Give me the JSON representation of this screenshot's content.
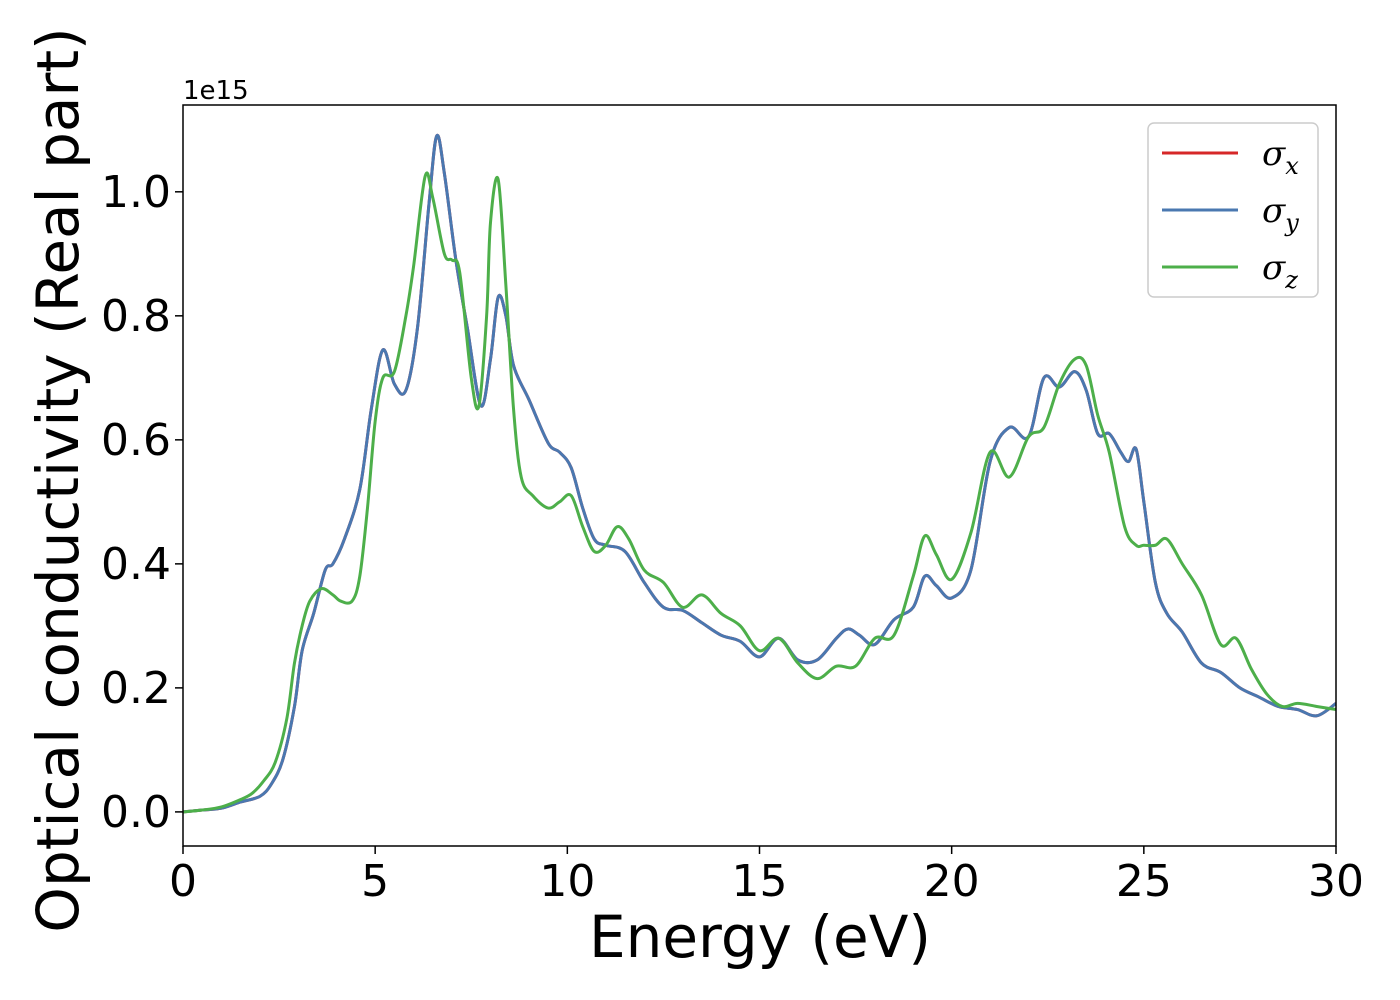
{
  "chart_data": {
    "type": "line",
    "xlabel": "Energy (eV)",
    "ylabel": "Optical conductivity (Real part)",
    "offset_text": "1e15",
    "xlim": [
      0,
      30
    ],
    "ylim": [
      -0.055,
      1.14
    ],
    "x_ticks": [
      0,
      5,
      10,
      15,
      20,
      25,
      30
    ],
    "x_tick_labels": [
      "0",
      "5",
      "10",
      "15",
      "20",
      "25",
      "30"
    ],
    "y_ticks": [
      0.0,
      0.2,
      0.4,
      0.6,
      0.8,
      1.0
    ],
    "y_tick_labels": [
      "0.0",
      "0.2",
      "0.4",
      "0.6",
      "0.8",
      "1.0"
    ],
    "grid": false,
    "legend_position": "top-right",
    "series": [
      {
        "name": "σx",
        "legend_symbol": "σ",
        "legend_sub": "x",
        "color": "#d62728",
        "x": [
          0,
          0.5,
          1,
          1.5,
          2,
          2.3,
          2.6,
          2.9,
          3.1,
          3.4,
          3.7,
          3.9,
          4.2,
          4.6,
          4.9,
          5.2,
          5.5,
          5.8,
          6.1,
          6.4,
          6.6,
          6.8,
          7.1,
          7.4,
          7.75,
          8.0,
          8.2,
          8.4,
          8.6,
          9.0,
          9.5,
          9.8,
          10.1,
          10.4,
          10.7,
          11.0,
          11.5,
          12.0,
          12.5,
          13.0,
          13.5,
          14.0,
          14.5,
          15.0,
          15.5,
          16.0,
          16.5,
          17.0,
          17.3,
          17.6,
          18.0,
          18.5,
          19.0,
          19.3,
          19.6,
          20.0,
          20.5,
          21.0,
          21.5,
          22.0,
          22.4,
          22.8,
          23.2,
          23.5,
          23.8,
          24.1,
          24.4,
          24.6,
          24.8,
          25.0,
          25.3,
          25.6,
          26.0,
          26.5,
          27.0,
          27.5,
          28.0,
          28.5,
          29.0,
          29.5,
          30.0
        ],
        "values": [
          0.0,
          0.003,
          0.006,
          0.016,
          0.025,
          0.045,
          0.085,
          0.17,
          0.26,
          0.32,
          0.39,
          0.4,
          0.44,
          0.52,
          0.65,
          0.745,
          0.69,
          0.68,
          0.78,
          0.98,
          1.09,
          1.03,
          0.89,
          0.78,
          0.655,
          0.73,
          0.83,
          0.8,
          0.72,
          0.665,
          0.595,
          0.58,
          0.555,
          0.49,
          0.44,
          0.43,
          0.42,
          0.37,
          0.33,
          0.325,
          0.305,
          0.285,
          0.275,
          0.25,
          0.28,
          0.245,
          0.245,
          0.28,
          0.295,
          0.285,
          0.27,
          0.31,
          0.33,
          0.38,
          0.365,
          0.345,
          0.39,
          0.565,
          0.62,
          0.605,
          0.7,
          0.685,
          0.71,
          0.68,
          0.61,
          0.61,
          0.58,
          0.565,
          0.585,
          0.5,
          0.37,
          0.32,
          0.29,
          0.24,
          0.225,
          0.2,
          0.185,
          0.17,
          0.165,
          0.155,
          0.175
        ]
      },
      {
        "name": "σy",
        "legend_symbol": "σ",
        "legend_sub": "y",
        "color": "#4a78b0",
        "x": [
          0,
          0.5,
          1,
          1.5,
          2,
          2.3,
          2.6,
          2.9,
          3.1,
          3.4,
          3.7,
          3.9,
          4.2,
          4.6,
          4.9,
          5.2,
          5.5,
          5.8,
          6.1,
          6.4,
          6.6,
          6.8,
          7.1,
          7.4,
          7.75,
          8.0,
          8.2,
          8.4,
          8.6,
          9.0,
          9.5,
          9.8,
          10.1,
          10.4,
          10.7,
          11.0,
          11.5,
          12.0,
          12.5,
          13.0,
          13.5,
          14.0,
          14.5,
          15.0,
          15.5,
          16.0,
          16.5,
          17.0,
          17.3,
          17.6,
          18.0,
          18.5,
          19.0,
          19.3,
          19.6,
          20.0,
          20.5,
          21.0,
          21.5,
          22.0,
          22.4,
          22.8,
          23.2,
          23.5,
          23.8,
          24.1,
          24.4,
          24.6,
          24.8,
          25.0,
          25.3,
          25.6,
          26.0,
          26.5,
          27.0,
          27.5,
          28.0,
          28.5,
          29.0,
          29.5,
          30.0
        ],
        "values": [
          0.0,
          0.003,
          0.006,
          0.016,
          0.025,
          0.045,
          0.085,
          0.17,
          0.26,
          0.32,
          0.39,
          0.4,
          0.44,
          0.52,
          0.65,
          0.745,
          0.69,
          0.68,
          0.78,
          0.98,
          1.09,
          1.03,
          0.89,
          0.78,
          0.655,
          0.73,
          0.83,
          0.8,
          0.72,
          0.665,
          0.595,
          0.58,
          0.555,
          0.49,
          0.44,
          0.43,
          0.42,
          0.37,
          0.33,
          0.325,
          0.305,
          0.285,
          0.275,
          0.25,
          0.28,
          0.245,
          0.245,
          0.28,
          0.295,
          0.285,
          0.27,
          0.31,
          0.33,
          0.38,
          0.365,
          0.345,
          0.39,
          0.565,
          0.62,
          0.605,
          0.7,
          0.685,
          0.71,
          0.68,
          0.61,
          0.61,
          0.58,
          0.565,
          0.585,
          0.5,
          0.37,
          0.32,
          0.29,
          0.24,
          0.225,
          0.2,
          0.185,
          0.17,
          0.165,
          0.155,
          0.175
        ]
      },
      {
        "name": "σz",
        "legend_symbol": "σ",
        "legend_sub": "z",
        "color": "#4daf4a",
        "x": [
          0,
          0.5,
          1,
          1.5,
          1.8,
          2.1,
          2.4,
          2.7,
          2.9,
          3.1,
          3.3,
          3.6,
          3.9,
          4.1,
          4.4,
          4.6,
          4.8,
          5.0,
          5.2,
          5.5,
          5.8,
          6.0,
          6.3,
          6.5,
          6.8,
          7.0,
          7.2,
          7.5,
          7.7,
          7.9,
          8.0,
          8.2,
          8.4,
          8.6,
          8.8,
          9.1,
          9.5,
          9.8,
          10.1,
          10.4,
          10.7,
          11.0,
          11.3,
          11.6,
          12.0,
          12.5,
          13.0,
          13.5,
          14.0,
          14.5,
          15.0,
          15.5,
          16.0,
          16.5,
          17.0,
          17.5,
          18.0,
          18.5,
          19.0,
          19.3,
          19.6,
          20.0,
          20.5,
          21.0,
          21.5,
          22.0,
          22.4,
          22.8,
          23.2,
          23.5,
          23.8,
          24.1,
          24.5,
          24.8,
          25.0,
          25.3,
          25.6,
          26.0,
          26.5,
          27.0,
          27.4,
          27.8,
          28.2,
          28.6,
          29.0,
          29.5,
          30.0
        ],
        "values": [
          0.0,
          0.003,
          0.008,
          0.02,
          0.03,
          0.05,
          0.08,
          0.15,
          0.24,
          0.3,
          0.34,
          0.36,
          0.35,
          0.34,
          0.34,
          0.38,
          0.49,
          0.63,
          0.7,
          0.71,
          0.8,
          0.88,
          1.025,
          0.99,
          0.9,
          0.89,
          0.87,
          0.7,
          0.655,
          0.8,
          0.95,
          1.02,
          0.85,
          0.65,
          0.54,
          0.51,
          0.49,
          0.5,
          0.51,
          0.46,
          0.42,
          0.43,
          0.46,
          0.44,
          0.39,
          0.37,
          0.33,
          0.35,
          0.32,
          0.3,
          0.26,
          0.28,
          0.24,
          0.215,
          0.235,
          0.235,
          0.28,
          0.285,
          0.38,
          0.445,
          0.415,
          0.375,
          0.45,
          0.58,
          0.54,
          0.605,
          0.62,
          0.69,
          0.73,
          0.72,
          0.64,
          0.58,
          0.46,
          0.43,
          0.43,
          0.43,
          0.44,
          0.4,
          0.35,
          0.27,
          0.28,
          0.23,
          0.19,
          0.17,
          0.175,
          0.17,
          0.165
        ]
      }
    ]
  }
}
